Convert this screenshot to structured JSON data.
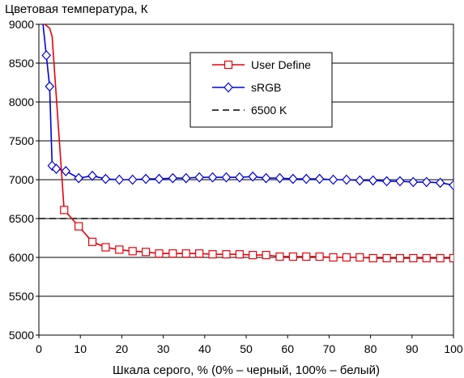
{
  "chart_data": {
    "type": "line",
    "title": "Цветовая температура, К",
    "xlabel": "Шкала серого, % (0% – черный, 100% – белый)",
    "ylabel": "",
    "xlim": [
      0,
      100
    ],
    "ylim": [
      5000,
      9000
    ],
    "x_ticks": [
      "0",
      "10",
      "20",
      "30",
      "40",
      "50",
      "60",
      "70",
      "80",
      "90",
      "100"
    ],
    "y_ticks": [
      "5000",
      "5500",
      "6000",
      "6500",
      "7000",
      "7500",
      "8000",
      "8500",
      "9000"
    ],
    "grid": "horizontal",
    "legend_position": "upper-center",
    "series": [
      {
        "name": "User Define",
        "color": "#e8000a",
        "marker": "square",
        "x": [
          1.4,
          2.6,
          3.2,
          6.1,
          9.6,
          12.9,
          16.1,
          19.4,
          22.6,
          25.8,
          29.0,
          32.3,
          35.5,
          38.7,
          41.9,
          45.2,
          48.4,
          51.6,
          54.8,
          58.1,
          61.3,
          64.5,
          67.7,
          71.0,
          74.2,
          77.4,
          80.6,
          83.9,
          87.1,
          90.3,
          93.5,
          96.8,
          100.0
        ],
        "y": [
          9000,
          8950,
          8840,
          6610,
          6400,
          6200,
          6130,
          6100,
          6080,
          6070,
          6050,
          6050,
          6050,
          6050,
          6040,
          6040,
          6040,
          6030,
          6030,
          6010,
          6010,
          6010,
          6010,
          6000,
          6000,
          6000,
          5990,
          5990,
          5990,
          5990,
          5990,
          5990,
          5990
        ]
      },
      {
        "name": "sRGB",
        "color": "#0000dd",
        "marker": "diamond",
        "x": [
          1.0,
          1.8,
          2.6,
          3.2,
          4.2,
          6.5,
          9.6,
          12.9,
          16.1,
          19.4,
          22.6,
          25.8,
          29.0,
          32.3,
          35.5,
          38.7,
          41.9,
          45.2,
          48.4,
          51.6,
          54.8,
          58.1,
          61.3,
          64.5,
          67.7,
          71.0,
          74.2,
          77.4,
          80.6,
          83.9,
          87.1,
          90.3,
          93.5,
          96.8,
          100.0
        ],
        "y": [
          9000,
          8600,
          8200,
          7180,
          7140,
          7110,
          7020,
          7050,
          7010,
          7000,
          7000,
          7010,
          7010,
          7020,
          7020,
          7030,
          7030,
          7030,
          7030,
          7040,
          7020,
          7020,
          7010,
          7010,
          7010,
          7000,
          7000,
          6990,
          6990,
          6980,
          6980,
          6970,
          6970,
          6960,
          6930
        ]
      },
      {
        "name": "6500 K",
        "color": "#000000",
        "marker": "none",
        "dashed": true,
        "x": [
          0,
          100
        ],
        "y": [
          6500,
          6500
        ]
      }
    ]
  }
}
